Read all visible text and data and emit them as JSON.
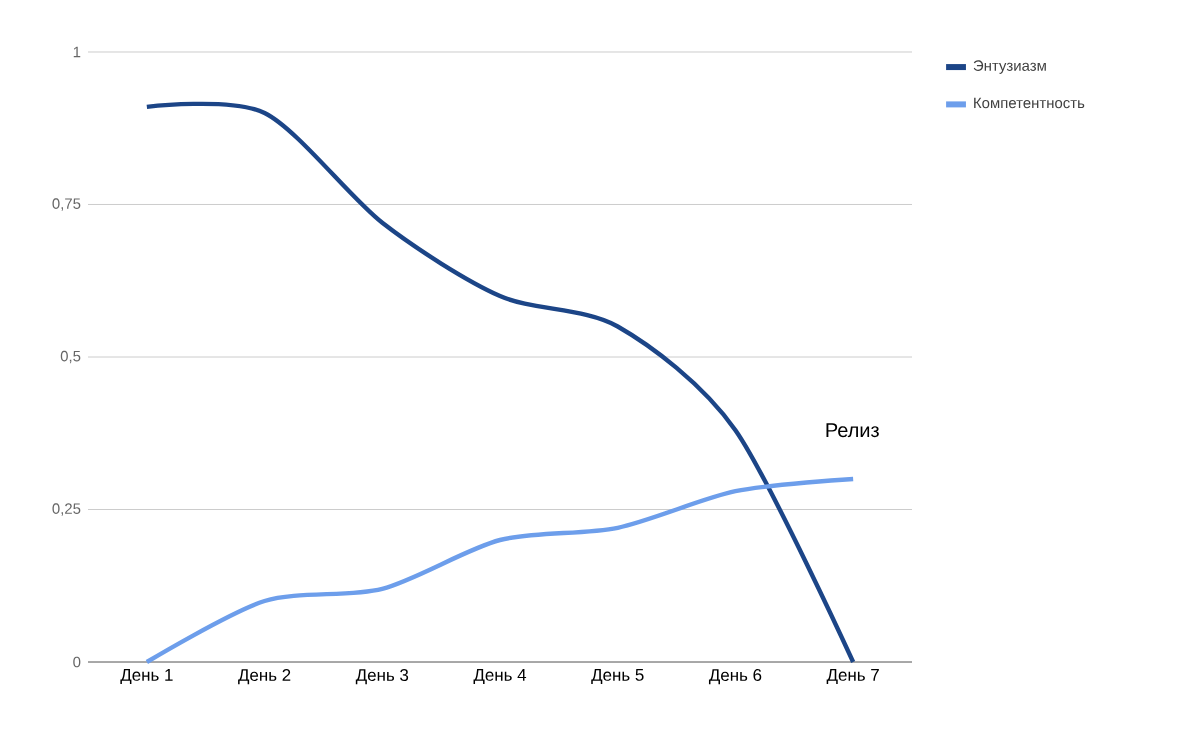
{
  "chart_data": {
    "type": "line",
    "categories": [
      "День 1",
      "День 2",
      "День 3",
      "День 4",
      "День 5",
      "День 6",
      "День 7"
    ],
    "series": [
      {
        "name": "Энтузиазм",
        "color": "#1c4587",
        "values": [
          0.91,
          0.9,
          0.72,
          0.6,
          0.55,
          0.38,
          0
        ]
      },
      {
        "name": "Компетентность",
        "color": "#6d9eeb",
        "values": [
          0,
          0.1,
          0.12,
          0.2,
          0.22,
          0.28,
          0.3
        ]
      }
    ],
    "ylim": [
      0,
      1
    ],
    "yticks": [
      {
        "value": 0,
        "label": "0"
      },
      {
        "value": 0.25,
        "label": "0,25"
      },
      {
        "value": 0.5,
        "label": "0,5"
      },
      {
        "value": 0.75,
        "label": "0,75"
      },
      {
        "value": 1,
        "label": "1"
      }
    ],
    "grid": "y",
    "legend": "top right",
    "marker": "none",
    "line_style": "solid",
    "annotations": [
      "Релиз"
    ]
  }
}
